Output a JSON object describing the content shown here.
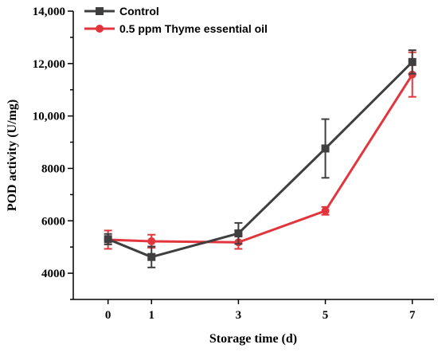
{
  "chart_data": {
    "type": "line",
    "title": "",
    "xlabel": "Storage time (d)",
    "ylabel": "POD activity (U/mg)",
    "x": [
      0,
      1,
      3,
      5,
      7
    ],
    "xlim": [
      -0.8,
      7.5
    ],
    "ylim": [
      3000,
      14000
    ],
    "xticks": [
      0,
      1,
      3,
      5,
      7
    ],
    "xtick_labels": [
      "0",
      "1",
      "3",
      "5",
      "7"
    ],
    "yticks": [
      4000,
      6000,
      8000,
      10000,
      12000,
      14000
    ],
    "ytick_labels": [
      "4000",
      "6000",
      "8000",
      "10,000",
      "12,000",
      "14,000"
    ],
    "grid": false,
    "legend_position": "top-left",
    "series": [
      {
        "name": "Control",
        "color": "#3f3f3f",
        "marker": "square",
        "values": [
          5300,
          4620,
          5520,
          8760,
          12060
        ],
        "errors": [
          200,
          400,
          400,
          1120,
          450
        ]
      },
      {
        "name": "0.5 ppm Thyme essential oil",
        "color": "#e2363e",
        "marker": "circle",
        "values": [
          5280,
          5220,
          5180,
          6380,
          11580
        ],
        "errors": [
          350,
          250,
          250,
          150,
          850
        ]
      }
    ]
  }
}
